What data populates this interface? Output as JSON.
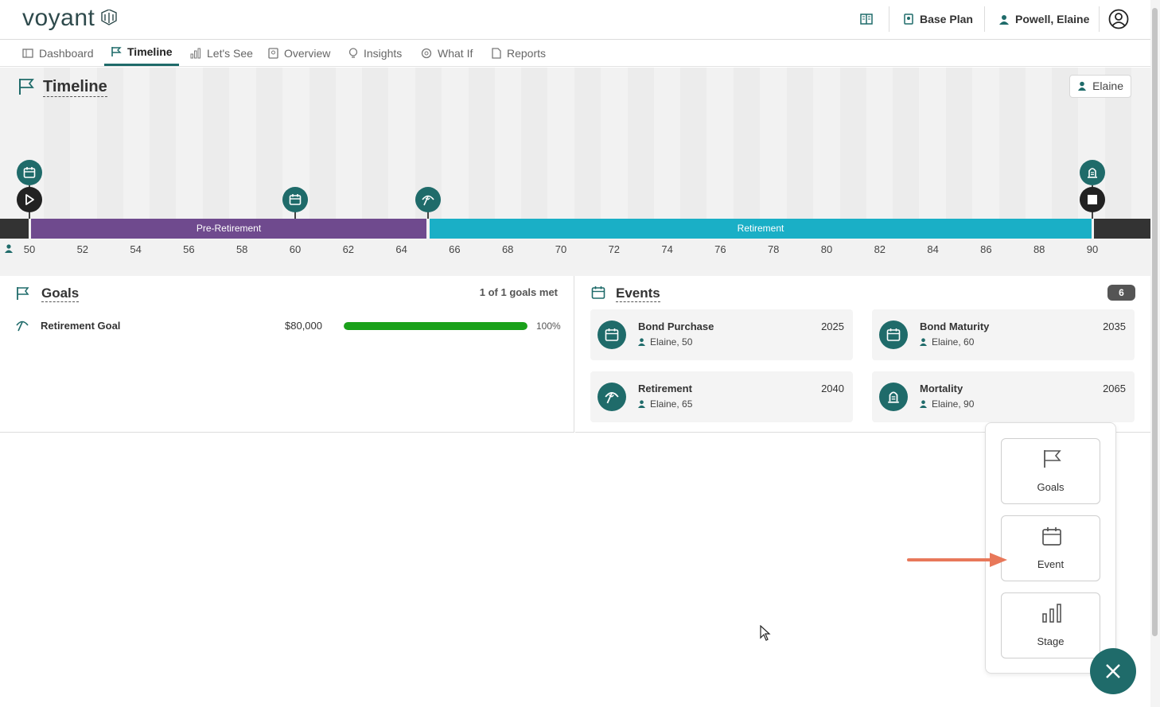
{
  "app": {
    "logo_text": "voyant"
  },
  "header": {
    "plan_label": "Base Plan",
    "client_name": "Powell, Elaine"
  },
  "nav": {
    "tabs": [
      {
        "label": "Dashboard",
        "icon": "dashboard-icon"
      },
      {
        "label": "Timeline",
        "icon": "flag-icon",
        "active": true
      },
      {
        "label": "Let's See",
        "icon": "bar-chart-icon"
      },
      {
        "label": "Overview",
        "icon": "overview-icon"
      },
      {
        "label": "Insights",
        "icon": "lightbulb-icon"
      },
      {
        "label": "What If",
        "icon": "whatif-icon"
      },
      {
        "label": "Reports",
        "icon": "report-icon"
      }
    ]
  },
  "timeline": {
    "title": "Timeline",
    "person_chip": "Elaine",
    "stages": [
      {
        "label": "Pre-Retirement",
        "color": "#6f4a8e"
      },
      {
        "label": "Retirement",
        "color": "#1aafc6"
      }
    ],
    "ages": [
      "50",
      "52",
      "54",
      "56",
      "58",
      "60",
      "62",
      "64",
      "66",
      "68",
      "70",
      "72",
      "74",
      "76",
      "78",
      "80",
      "82",
      "84",
      "86",
      "88",
      "90"
    ]
  },
  "goals": {
    "title": "Goals",
    "summary": "1 of 1 goals met",
    "items": [
      {
        "name": "Retirement Goal",
        "amount": "$80,000",
        "percent_text": "100%",
        "percent": 100,
        "icon": "umbrella-icon"
      }
    ]
  },
  "events": {
    "title": "Events",
    "count": "6",
    "items": [
      {
        "name": "Bond Purchase",
        "year": "2025",
        "who": "Elaine, 50",
        "icon": "calendar-icon"
      },
      {
        "name": "Bond Maturity",
        "year": "2035",
        "who": "Elaine, 60",
        "icon": "calendar-icon"
      },
      {
        "name": "Retirement",
        "year": "2040",
        "who": "Elaine, 65",
        "icon": "umbrella-icon"
      },
      {
        "name": "Mortality",
        "year": "2065",
        "who": "Elaine, 90",
        "icon": "tombstone-icon"
      }
    ]
  },
  "add_menu": {
    "options": [
      {
        "label": "Goals",
        "icon": "flag-icon"
      },
      {
        "label": "Event",
        "icon": "calendar-icon"
      },
      {
        "label": "Stage",
        "icon": "bar-chart-icon"
      }
    ]
  },
  "colors": {
    "accent": "#1f6b6a",
    "pre_retirement": "#6f4a8e",
    "retirement": "#1aafc6",
    "progress": "#1aa11a"
  }
}
